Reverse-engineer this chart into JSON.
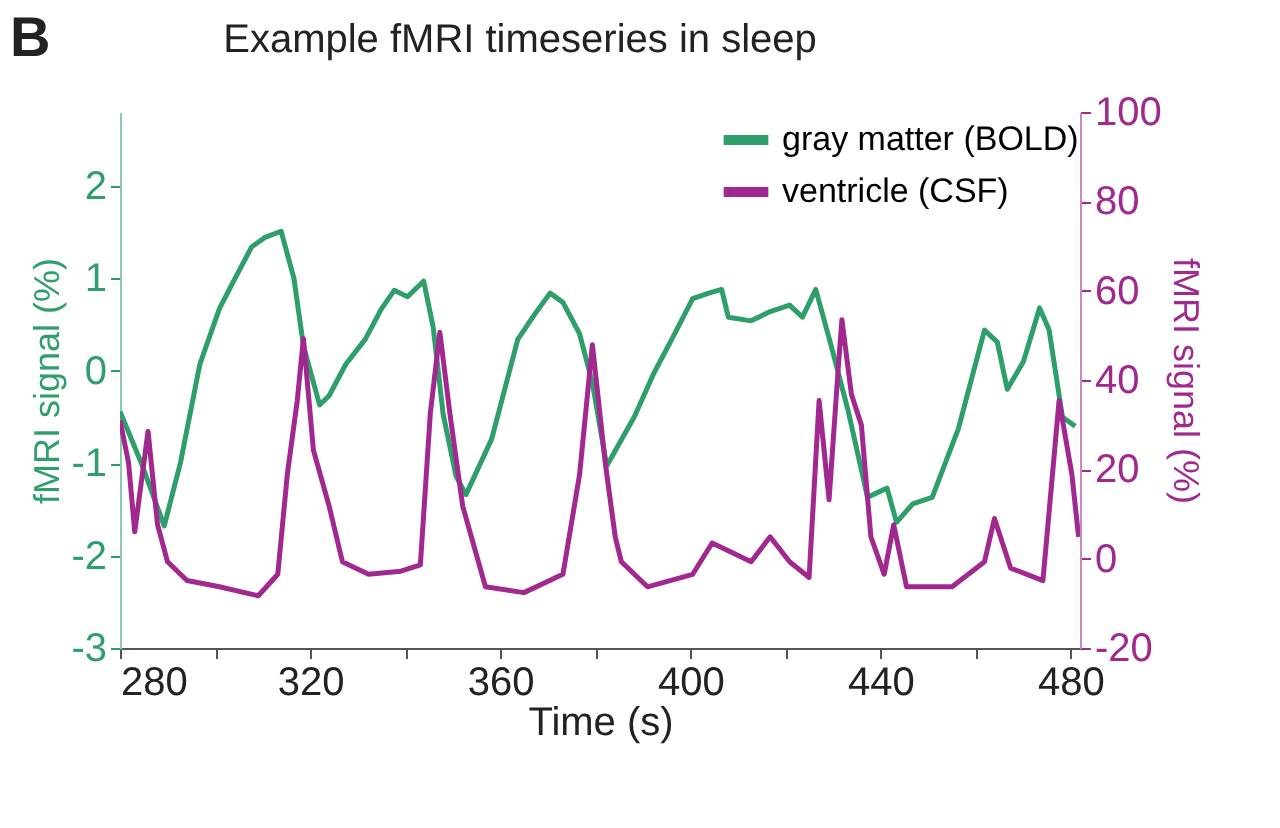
{
  "chart_data": {
    "type": "line",
    "title": "Example fMRI timeseries in sleep",
    "annotations": [
      "B"
    ],
    "xlabel": "Time (s)",
    "ylabel": "fMRI signal (%)",
    "y2label": "fMRI signal (%)",
    "xlim": [
      280,
      482
    ],
    "xticks": [
      280,
      {
        "value": 300,
        "label": null
      },
      320,
      {
        "value": 340,
        "label": null
      },
      360,
      {
        "value": 380,
        "label": null
      },
      400,
      {
        "value": 420,
        "label": null
      },
      440,
      {
        "value": 460,
        "label": null
      },
      480
    ],
    "ylim": [
      -3,
      2.8
    ],
    "yticks": [
      -3,
      -2,
      -1,
      0,
      1,
      2
    ],
    "y2lim": [
      -20,
      100
    ],
    "y2ticks": [
      -20,
      0,
      20,
      40,
      60,
      80,
      100
    ],
    "legend": "top right",
    "grid": false,
    "marker": "none",
    "line_style": "solid",
    "series": [
      {
        "name": "gray matter (BOLD)",
        "color": "#2e9e6a",
        "x": [
          280,
          284.5,
          289.3,
          292.7,
          296.8,
          300.9,
          303.6,
          307.7,
          310.4,
          313.9,
          316.6,
          318.6,
          322,
          324,
          327.5,
          331.6,
          335,
          337.7,
          340.5,
          343.9,
          345.9,
          348,
          350.7,
          352.8,
          358.2,
          363.7,
          367.1,
          370.5,
          373.2,
          376.7,
          379.4,
          382.4,
          388.2,
          392.3,
          396.4,
          400.5,
          403.9,
          406.6,
          408,
          412.8,
          416.8,
          420.9,
          423.6,
          426.4,
          429.8,
          433.2,
          437.3,
          441.4,
          443.4,
          446.8,
          450.9,
          456.4,
          461.9,
          464.6,
          466.7,
          470.1,
          473.5,
          475.5,
          478.3,
          481
        ],
        "values": [
          -0.44,
          -1.0,
          -1.68,
          -1.0,
          0.07,
          0.67,
          0.94,
          1.34,
          1.44,
          1.51,
          1.0,
          0.27,
          -0.37,
          -0.27,
          0.07,
          0.34,
          0.67,
          0.87,
          0.8,
          0.97,
          0.47,
          -0.47,
          -1.14,
          -1.34,
          -0.74,
          0.34,
          0.6,
          0.84,
          0.74,
          0.4,
          -0.13,
          -1.03,
          -0.5,
          -0.03,
          0.37,
          0.78,
          0.84,
          0.88,
          0.58,
          0.54,
          0.64,
          0.71,
          0.58,
          0.88,
          0.24,
          -0.43,
          -1.37,
          -1.27,
          -1.64,
          -1.44,
          -1.37,
          -0.63,
          0.44,
          0.31,
          -0.2,
          0.1,
          0.68,
          0.44,
          -0.5,
          -0.6
        ]
      },
      {
        "name": "ventricle (CSF)",
        "color": "#a0288f",
        "axis": "y2",
        "x": [
          280,
          281.8,
          283.1,
          285.9,
          287.9,
          290,
          294.1,
          300.9,
          309.1,
          313.2,
          315.2,
          317.3,
          318.6,
          320.7,
          324,
          326.8,
          332.3,
          339.1,
          343.2,
          345.3,
          347.3,
          349.4,
          352.1,
          356.9,
          365,
          373.2,
          376.7,
          379.4,
          382.1,
          384.2,
          385.5,
          391,
          400.5,
          404.6,
          412.8,
          416.8,
          420.9,
          425,
          427.1,
          429.2,
          431.2,
          431.9,
          433.9,
          436,
          438,
          440.8,
          442.8,
          445.5,
          455.1,
          461.9,
          464,
          467.4,
          474.2,
          476.2,
          477.6,
          480.3,
          481.7
        ],
        "values": [
          31,
          21.5,
          6,
          28.5,
          7.6,
          -0.7,
          -4.9,
          -6.3,
          -8.3,
          -3.5,
          18.8,
          35.4,
          49.3,
          24.3,
          11.8,
          -0.7,
          -3.5,
          -2.8,
          -1.4,
          32.6,
          50.7,
          32.6,
          11.8,
          -6.3,
          -7.6,
          -3.5,
          18.8,
          47.9,
          21.5,
          4.9,
          -0.7,
          -6.3,
          -3.5,
          3.5,
          -0.7,
          4.9,
          -0.7,
          -4.2,
          35.4,
          13.2,
          43.7,
          53.5,
          36.8,
          29.9,
          4.9,
          -3.5,
          7.6,
          -6.3,
          -6.3,
          -0.7,
          9,
          -2.1,
          -4.9,
          18.8,
          35.4,
          18.8,
          4.9
        ]
      }
    ]
  }
}
